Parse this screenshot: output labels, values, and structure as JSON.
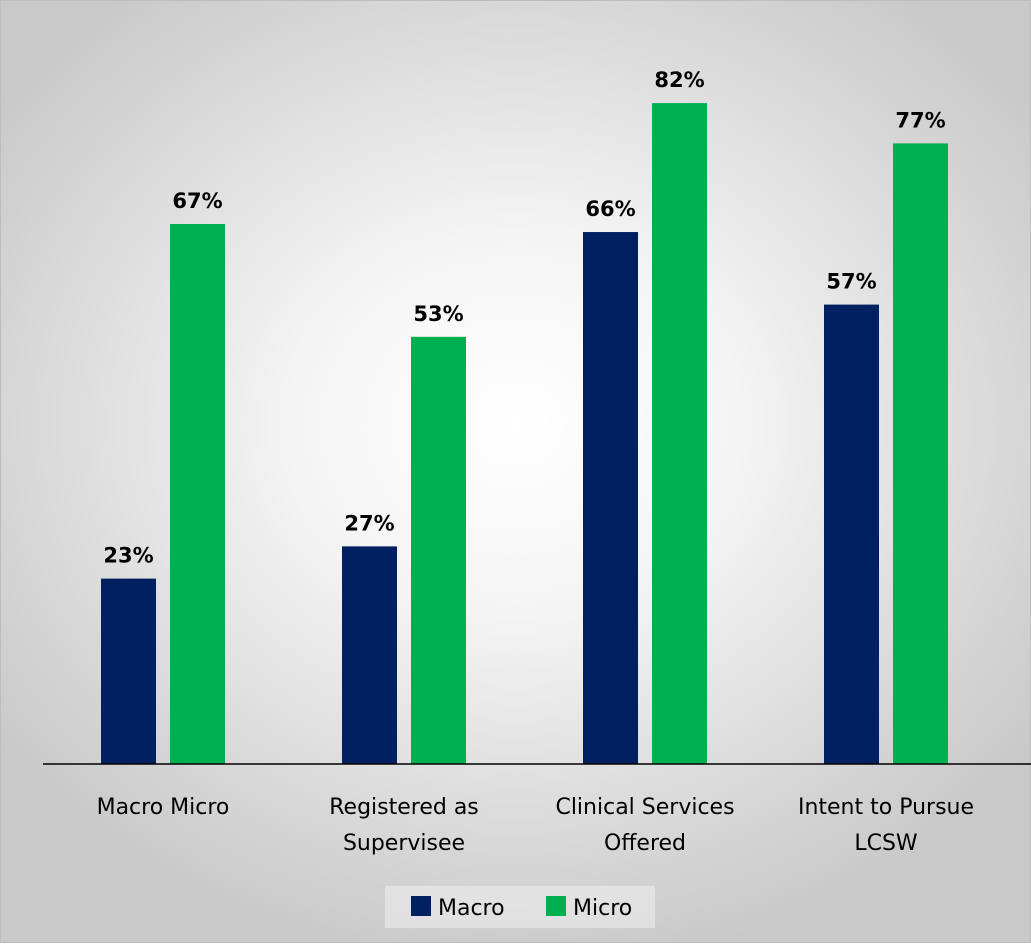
{
  "chart_data": {
    "type": "bar",
    "title": "",
    "xlabel": "",
    "ylabel": "",
    "categories": [
      [
        "Macro Micro"
      ],
      [
        "Registered as",
        "Supervisee"
      ],
      [
        "Clinical Services",
        "Offered"
      ],
      [
        "Intent to Pursue",
        "LCSW"
      ]
    ],
    "series": [
      {
        "name": "Macro",
        "color": "#002060",
        "values": [
          23,
          27,
          66,
          57
        ],
        "labels": [
          "23%",
          "27%",
          "66%",
          "57%"
        ]
      },
      {
        "name": "Micro",
        "color": "#00B050",
        "values": [
          67,
          53,
          82,
          77
        ],
        "labels": [
          "67%",
          "53%",
          "82%",
          "77%"
        ]
      }
    ],
    "ylim": [
      0,
      100
    ],
    "value_suffix": "%",
    "grid": false,
    "legend_position": "bottom"
  }
}
